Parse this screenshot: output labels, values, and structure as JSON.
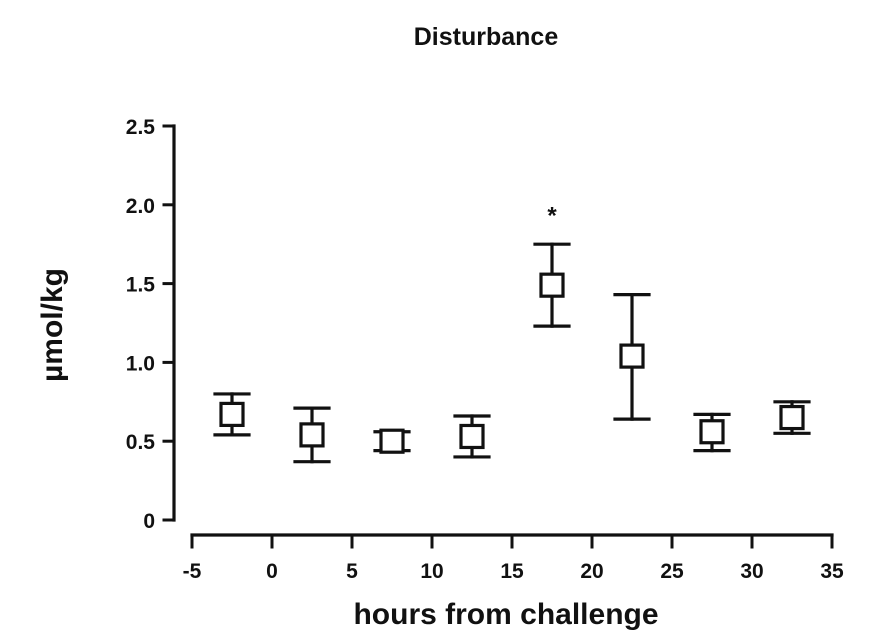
{
  "chart_data": {
    "type": "scatter",
    "title": "Disturbance",
    "xlabel": "hours from challenge",
    "ylabel": "µmol/kg",
    "xlim": [
      -5,
      35
    ],
    "ylim": [
      0,
      2.5
    ],
    "x_ticks": [
      -5,
      0,
      5,
      10,
      15,
      20,
      25,
      30,
      35
    ],
    "x_tick_labels": [
      "-5",
      "0",
      "5",
      "10",
      "15",
      "20",
      "25",
      "30",
      "35"
    ],
    "y_ticks": [
      0,
      0.5,
      1.0,
      1.5,
      2.0,
      2.5
    ],
    "y_tick_labels": [
      "0",
      "0.5",
      "1.0",
      "1.5",
      "2.0",
      "2.5"
    ],
    "grid": false,
    "legend": "none",
    "series": [
      {
        "marker": "open-square",
        "x": [
          -2.5,
          2.5,
          7.5,
          12.5,
          17.5,
          22.5,
          27.5,
          32.5
        ],
        "y": [
          0.67,
          0.54,
          0.5,
          0.53,
          1.49,
          1.04,
          0.56,
          0.65
        ],
        "y_upper": [
          0.8,
          0.71,
          0.56,
          0.66,
          1.75,
          1.43,
          0.67,
          0.75
        ],
        "y_lower": [
          0.54,
          0.37,
          0.44,
          0.4,
          1.23,
          0.64,
          0.44,
          0.55
        ]
      }
    ],
    "annotations": [
      {
        "text": "*",
        "x": 17.5,
        "y": 1.97
      }
    ]
  }
}
